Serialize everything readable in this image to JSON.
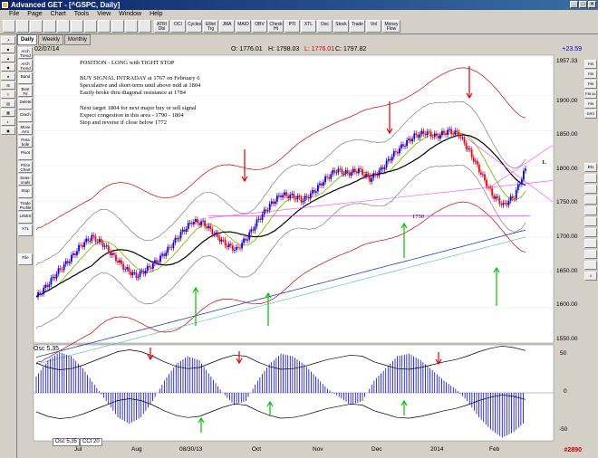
{
  "window": {
    "title": "Advanced GET - [^GSPC, Daily]"
  },
  "menu": [
    "File",
    "Page",
    "Chart",
    "Tools",
    "View",
    "Window",
    "Help"
  ],
  "toolbar_buttons": [
    "ATRI Dbl",
    "OCI",
    "Cycles",
    "Elliot Trg",
    "JMA",
    "MA/D",
    "OBV",
    "Check Ht",
    "PTI",
    "XTL",
    "Osc",
    "Stock",
    "Trade",
    "Vol",
    "Money Flow"
  ],
  "tabs": [
    "Daily",
    "Weekly",
    "Monthly"
  ],
  "left_tools": [
    "",
    "",
    "",
    "",
    "",
    "",
    "",
    "",
    "",
    "",
    ""
  ],
  "side_tools": [
    "Arch Trend",
    "Arch Trend",
    "Band",
    "Best Fit",
    "Delete",
    "Diach",
    "Move Arm",
    "Para bole",
    "Pivot",
    "Price Chart",
    "Seas- onals",
    "Stop",
    "Trade Profile",
    "LINES",
    "XTL",
    "File"
  ],
  "right_tools": [
    "FIB PR",
    "FIB RT",
    "FIB EX",
    "FIB AL",
    "FIB PR",
    "ERS",
    "PTI",
    "",
    "",
    "",
    "",
    "",
    "",
    "",
    "",
    "",
    "",
    ""
  ],
  "header": {
    "date": "02/07/14",
    "open": "O: 1776.01",
    "high": "H: 1798.03",
    "low": "L: 1776.01",
    "close": "C: 1797.82",
    "change": "+23.59"
  },
  "annotations": [
    "POSITION - LONG with TIGHT STOP",
    "BUY SIGNAL INTRADAY at 1767 on February 6",
    "Speculative and short-term until above mid at 1804",
    "Easily broke thru diagonal resistance at 1784",
    "Next target 1804 for next major buy or sell signal",
    "Expect congestion in this area - 1790 - 1804",
    "Stop and reverse if close below 1772"
  ],
  "level_label": "1730",
  "pti_label": "1.",
  "price_axis": [
    "1957.33",
    "1900.00",
    "1850.00",
    "1800.00",
    "1750.00",
    "1700.00",
    "1650.00",
    "1600.00",
    "1550.00"
  ],
  "oscillator": {
    "title": "Osc 5,35",
    "axis": [
      "50",
      "0",
      "-50"
    ],
    "tabs": [
      "Osc 5,35",
      "CCI 20"
    ]
  },
  "x_axis": [
    "Jul",
    "Aug",
    "08/30/13",
    "Oct",
    "Nov",
    "Dec",
    "2014",
    "Feb"
  ],
  "status": "#2890",
  "colors": {
    "up_bar": "#0000ff",
    "down_bar": "#ff0000",
    "signal_arrow_down": "#e00000",
    "signal_arrow_up": "#00c000",
    "band_red": "#cc0000",
    "ma_black": "#000000",
    "ma_green": "#80c000",
    "trend_blue": "#2040c0",
    "fib_magenta": "#ff40ff"
  },
  "chart_data": {
    "type": "candlestick",
    "title": "",
    "x_categories": [
      "Jul",
      "Aug",
      "08/30/13",
      "Oct",
      "Nov",
      "Dec",
      "2014",
      "Feb"
    ],
    "ylim": [
      1550,
      1957.33
    ],
    "closes": [
      1615,
      1632,
      1652,
      1668,
      1688,
      1700,
      1690,
      1672,
      1655,
      1645,
      1655,
      1668,
      1685,
      1705,
      1722,
      1720,
      1705,
      1690,
      1682,
      1700,
      1725,
      1745,
      1760,
      1758,
      1752,
      1765,
      1782,
      1795,
      1790,
      1795,
      1782,
      1795,
      1815,
      1830,
      1843,
      1848,
      1842,
      1850,
      1846,
      1820,
      1790,
      1760,
      1745,
      1758,
      1797
    ],
    "levels": [
      1730,
      1784,
      1804,
      1772
    ],
    "oscillator_values": [
      20,
      40,
      50,
      45,
      30,
      10,
      -10,
      -30,
      -38,
      -30,
      -10,
      15,
      35,
      45,
      40,
      20,
      0,
      -15,
      -10,
      15,
      35,
      48,
      45,
      35,
      20,
      5,
      -5,
      -15,
      -10,
      15,
      30,
      45,
      48,
      40,
      28,
      15,
      5,
      -10,
      -30,
      -45,
      -55,
      -48,
      -35
    ]
  }
}
